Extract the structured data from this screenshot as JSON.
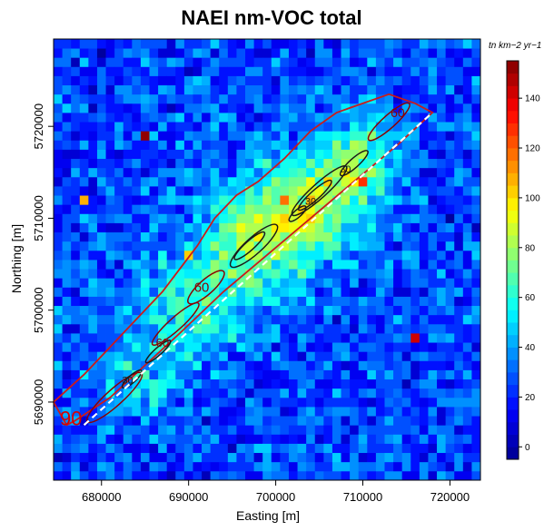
{
  "chart_data": {
    "type": "heatmap",
    "title": "NAEI nm-VOC total",
    "xlabel": "Easting [m]",
    "ylabel": "Northing [m]",
    "colorbar_unit": "tn km−2 yr−1",
    "xlim": [
      674500,
      723500
    ],
    "ylim": [
      5681500,
      5729500
    ],
    "x_ticks": [
      680000,
      690000,
      700000,
      710000,
      720000
    ],
    "y_ticks": [
      5690000,
      5700000,
      5710000,
      5720000
    ],
    "colorbar_range": [
      -5,
      155
    ],
    "colorbar_ticks": [
      0,
      20,
      40,
      60,
      80,
      100,
      120,
      140
    ],
    "grid_cell_km": 1,
    "palette": [
      "#00008f",
      "#0000ff",
      "#0080ff",
      "#00ffff",
      "#80ff80",
      "#ffff00",
      "#ff8000",
      "#ff0000",
      "#800000"
    ],
    "background_level": 30,
    "hotspots": [
      {
        "x": 690000,
        "y": 5700000,
        "value": 60,
        "sigma_km": 4.0
      },
      {
        "x": 697000,
        "y": 5707000,
        "value": 80,
        "sigma_km": 4.5
      },
      {
        "x": 703000,
        "y": 5711000,
        "value": 75,
        "sigma_km": 4.0
      },
      {
        "x": 708000,
        "y": 5714000,
        "value": 60,
        "sigma_km": 3.5
      },
      {
        "x": 684000,
        "y": 5693000,
        "value": 45,
        "sigma_km": 3.0
      },
      {
        "x": 711000,
        "y": 5718000,
        "value": 45,
        "sigma_km": 3.0
      }
    ],
    "outlier_cells": [
      {
        "x": 685000,
        "y": 5719000,
        "value": 150
      },
      {
        "x": 716000,
        "y": 5697000,
        "value": 140
      },
      {
        "x": 710000,
        "y": 5714000,
        "value": 125
      },
      {
        "x": 701000,
        "y": 5712000,
        "value": 115
      },
      {
        "x": 680000,
        "y": 5728000,
        "value": -5
      },
      {
        "x": 720000,
        "y": 5710000,
        "value": -5
      },
      {
        "x": 678000,
        "y": 5712000,
        "value": 105
      },
      {
        "x": 690000,
        "y": 5706000,
        "value": 100
      }
    ],
    "contour_labels": [
      {
        "text": "90",
        "x": 676500,
        "y": 5687500,
        "color": "#d40000",
        "size": 22
      },
      {
        "text": "60",
        "x": 691500,
        "y": 5702000,
        "color": "#8b0000",
        "size": 15
      },
      {
        "text": "60",
        "x": 687000,
        "y": 5696000,
        "color": "#8b0000",
        "size": 13
      },
      {
        "text": "60",
        "x": 714000,
        "y": 5721000,
        "color": "#8b0000",
        "size": 14
      },
      {
        "text": "30",
        "x": 683000,
        "y": 5692000,
        "color": "#1a1a1a",
        "size": 11
      },
      {
        "text": "30",
        "x": 704000,
        "y": 5711500,
        "color": "#1a1a1a",
        "size": 11
      },
      {
        "text": "30",
        "x": 708000,
        "y": 5715000,
        "color": "#1a1a1a",
        "size": 11
      }
    ],
    "dashed_line": [
      [
        678000,
        5687500
      ],
      [
        718000,
        5721500
      ]
    ],
    "outer_contour": [
      [
        674500,
        5690000
      ],
      [
        678000,
        5693000
      ],
      [
        681000,
        5696000
      ],
      [
        684000,
        5699000
      ],
      [
        687000,
        5702000
      ],
      [
        689000,
        5704500
      ],
      [
        691000,
        5707000
      ],
      [
        693000,
        5710000
      ],
      [
        695500,
        5712500
      ],
      [
        698000,
        5714000
      ],
      [
        701000,
        5716500
      ],
      [
        704000,
        5719500
      ],
      [
        707000,
        5721500
      ],
      [
        710000,
        5722500
      ],
      [
        713000,
        5723500
      ],
      [
        716000,
        5722500
      ],
      [
        718000,
        5721500
      ],
      [
        714000,
        5718000
      ],
      [
        709000,
        5714000
      ],
      [
        704000,
        5710000
      ],
      [
        699000,
        5706000
      ],
      [
        694000,
        5702000
      ],
      [
        689000,
        5697500
      ],
      [
        685000,
        5694000
      ],
      [
        681000,
        5690500
      ],
      [
        677000,
        5688000
      ],
      [
        676000,
        5687500
      ]
    ]
  }
}
